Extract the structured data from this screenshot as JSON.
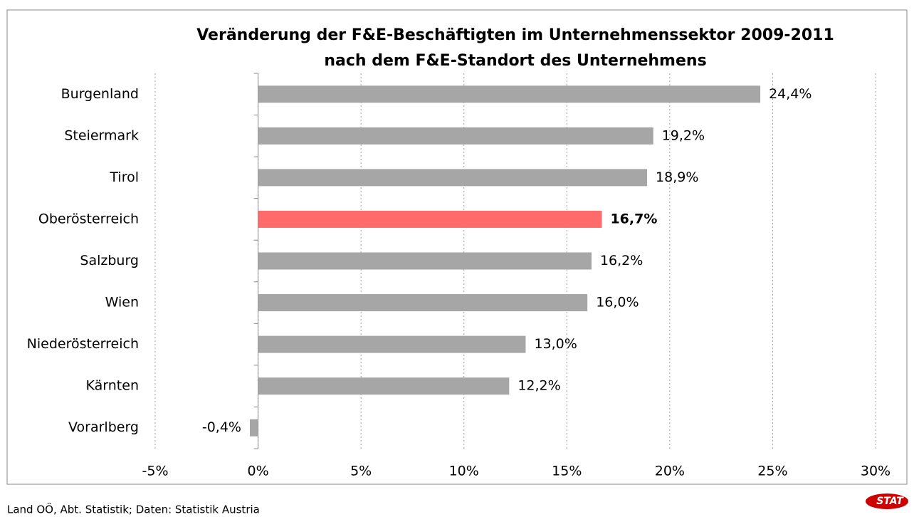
{
  "chart_data": {
    "type": "hbar",
    "title": "Veränderung der F&E-Beschäftigten im Unternehmenssektor 2009-2011",
    "subtitle": "nach dem F&E-Standort des Unternehmens",
    "categories": [
      "Burgenland",
      "Steiermark",
      "Tirol",
      "Oberösterreich",
      "Salzburg",
      "Wien",
      "Niederösterreich",
      "Kärnten",
      "Vorarlberg"
    ],
    "values": [
      24.4,
      19.2,
      18.9,
      16.7,
      16.2,
      16.0,
      13.0,
      12.2,
      -0.4
    ],
    "value_labels": [
      "24,4%",
      "19,2%",
      "18,9%",
      "16,7%",
      "16,2%",
      "16,0%",
      "13,0%",
      "12,2%",
      "-0,4%"
    ],
    "color": "#a6a6a6",
    "highlight": "Oberösterreich",
    "highlight_color": "#ff6b6b",
    "xlim": [
      -5,
      30
    ],
    "xticks": [
      {
        "value": -5,
        "label": "-5%"
      },
      {
        "value": 0,
        "label": "0%"
      },
      {
        "value": 5,
        "label": "5%"
      },
      {
        "value": 10,
        "label": "10%"
      },
      {
        "value": 15,
        "label": "15%"
      },
      {
        "value": 20,
        "label": "20%"
      },
      {
        "value": 25,
        "label": "25%"
      },
      {
        "value": 30,
        "label": "30%"
      }
    ],
    "grid": true,
    "source": "Land OÖ, Abt. Statistik; Daten: Statistik Austria",
    "logo": "STAT"
  }
}
